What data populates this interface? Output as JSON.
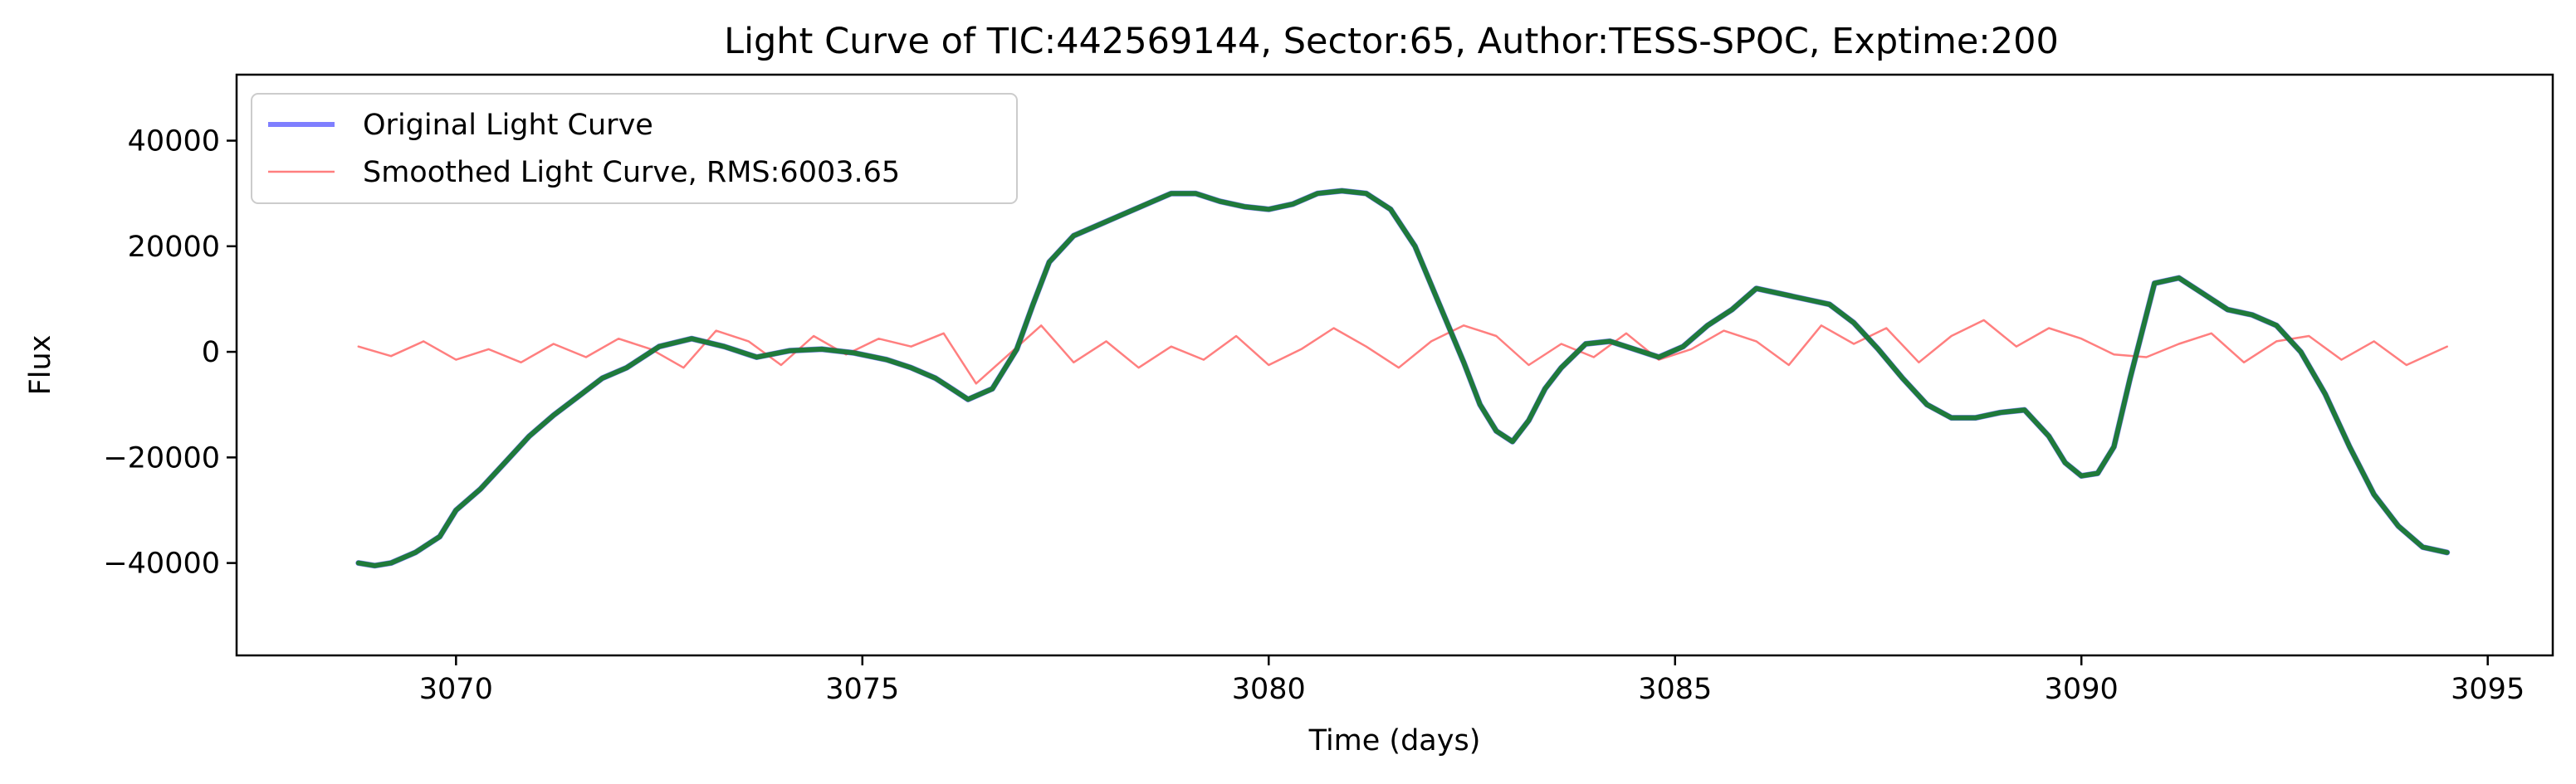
{
  "chart_data": {
    "type": "line",
    "title": "Light Curve of TIC:442569144, Sector:65, Author:TESS-SPOC, Exptime:200",
    "xlabel": "Time (days)",
    "ylabel": "Flux",
    "xlim": [
      3067.3,
      3095.8
    ],
    "ylim": [
      -57500,
      52500
    ],
    "xticks": [
      3070,
      3075,
      3080,
      3085,
      3090,
      3095
    ],
    "yticks": [
      -40000,
      -20000,
      0,
      20000,
      40000
    ],
    "grid": false,
    "legend_position": "top-left",
    "series": [
      {
        "name": "Original Light Curve",
        "color": "#0000ff",
        "x": [
          3068.8,
          3069.0,
          3069.2,
          3069.5,
          3069.8,
          3070.0,
          3070.3,
          3070.6,
          3070.9,
          3071.2,
          3071.5,
          3071.8,
          3072.1,
          3072.5,
          3072.9,
          3073.3,
          3073.7,
          3074.1,
          3074.5,
          3074.9,
          3075.3,
          3075.6,
          3075.9,
          3076.1,
          3076.3,
          3076.6,
          3076.9,
          3077.1,
          3077.3,
          3077.6,
          3077.9,
          3078.2,
          3078.5,
          3078.8,
          3079.1,
          3079.4,
          3079.7,
          3080.0,
          3080.3,
          3080.6,
          3080.9,
          3081.2,
          3081.5,
          3081.8,
          3082.1,
          3082.4,
          3082.6,
          3082.8,
          3083.0,
          3083.2,
          3083.4,
          3083.6,
          3083.9,
          3084.2,
          3084.5,
          3084.8,
          3085.1,
          3085.4,
          3085.7,
          3086.0,
          3086.3,
          3086.6,
          3086.9,
          3087.2,
          3087.5,
          3087.8,
          3088.1,
          3088.4,
          3088.7,
          3089.0,
          3089.3,
          3089.6,
          3089.8,
          3090.0,
          3090.2,
          3090.4,
          3090.6,
          3090.9,
          3091.2,
          3091.5,
          3091.8,
          3092.1,
          3092.4,
          3092.7,
          3093.0,
          3093.3,
          3093.6,
          3093.9,
          3094.2,
          3094.5
        ],
        "y": [
          -40000,
          -40500,
          -40000,
          -38000,
          -35000,
          -30000,
          -26000,
          -21000,
          -16000,
          -12000,
          -8500,
          -5000,
          -3000,
          1000,
          2500,
          1000,
          -1000,
          200,
          500,
          -200,
          -1500,
          -3000,
          -5000,
          -7000,
          -9000,
          -7000,
          500,
          9000,
          17000,
          22000,
          24000,
          26000,
          28000,
          30000,
          30000,
          28500,
          27500,
          27000,
          28000,
          30000,
          30500,
          30000,
          27000,
          20000,
          9000,
          -2000,
          -10000,
          -15000,
          -17000,
          -13000,
          -7000,
          -3000,
          1500,
          2000,
          500,
          -1000,
          1000,
          5000,
          8000,
          12000,
          11000,
          10000,
          9000,
          5500,
          500,
          -5000,
          -10000,
          -12500,
          -12500,
          -11500,
          -11000,
          -16000,
          -21000,
          -23500,
          -23000,
          -18000,
          -5000,
          13000,
          14000,
          11000,
          8000,
          7000,
          5000,
          0,
          -8000,
          -18000,
          -27000,
          -33000,
          -37000,
          -38000
        ]
      },
      {
        "name": "Smoothed Light Curve, RMS:6003.65",
        "color": "#ff0000",
        "x": [
          3068.8,
          3069.2,
          3069.6,
          3070.0,
          3070.4,
          3070.8,
          3071.2,
          3071.6,
          3072.0,
          3072.4,
          3072.8,
          3073.2,
          3073.6,
          3074.0,
          3074.4,
          3074.8,
          3075.2,
          3075.6,
          3076.0,
          3076.4,
          3076.8,
          3077.2,
          3077.6,
          3078.0,
          3078.4,
          3078.8,
          3079.2,
          3079.6,
          3080.0,
          3080.4,
          3080.8,
          3081.2,
          3081.6,
          3082.0,
          3082.4,
          3082.8,
          3083.2,
          3083.6,
          3084.0,
          3084.4,
          3084.8,
          3085.2,
          3085.6,
          3086.0,
          3086.4,
          3086.8,
          3087.2,
          3087.6,
          3088.0,
          3088.4,
          3088.8,
          3089.2,
          3089.6,
          3090.0,
          3090.4,
          3090.8,
          3091.2,
          3091.6,
          3092.0,
          3092.4,
          3092.8,
          3093.2,
          3093.6,
          3094.0,
          3094.5
        ],
        "y": [
          1000,
          -800,
          2000,
          -1500,
          500,
          -2000,
          1500,
          -1000,
          2500,
          500,
          -3000,
          4000,
          2000,
          -2500,
          3000,
          -500,
          2500,
          1000,
          3500,
          -6000,
          -500,
          5000,
          -2000,
          2000,
          -3000,
          1000,
          -1500,
          3000,
          -2500,
          500,
          4500,
          1000,
          -3000,
          2000,
          5000,
          3000,
          -2500,
          1500,
          -1000,
          3500,
          -1500,
          500,
          4000,
          2000,
          -2500,
          5000,
          1500,
          4500,
          -2000,
          3000,
          6000,
          1000,
          4500,
          2500,
          -500,
          -1000,
          1500,
          3500,
          -2000,
          2000,
          3000,
          -1500,
          2000,
          -2500,
          1000
        ]
      },
      {
        "name": "",
        "color": "#1f7a3a",
        "x": [
          3068.8,
          3069.0,
          3069.2,
          3069.5,
          3069.8,
          3070.0,
          3070.3,
          3070.6,
          3070.9,
          3071.2,
          3071.5,
          3071.8,
          3072.1,
          3072.5,
          3072.9,
          3073.3,
          3073.7,
          3074.1,
          3074.5,
          3074.9,
          3075.3,
          3075.6,
          3075.9,
          3076.1,
          3076.3,
          3076.6,
          3076.9,
          3077.1,
          3077.3,
          3077.6,
          3077.9,
          3078.2,
          3078.5,
          3078.8,
          3079.1,
          3079.4,
          3079.7,
          3080.0,
          3080.3,
          3080.6,
          3080.9,
          3081.2,
          3081.5,
          3081.8,
          3082.1,
          3082.4,
          3082.6,
          3082.8,
          3083.0,
          3083.2,
          3083.4,
          3083.6,
          3083.9,
          3084.2,
          3084.5,
          3084.8,
          3085.1,
          3085.4,
          3085.7,
          3086.0,
          3086.3,
          3086.6,
          3086.9,
          3087.2,
          3087.5,
          3087.8,
          3088.1,
          3088.4,
          3088.7,
          3089.0,
          3089.3,
          3089.6,
          3089.8,
          3090.0,
          3090.2,
          3090.4,
          3090.6,
          3090.9,
          3091.2,
          3091.5,
          3091.8,
          3092.1,
          3092.4,
          3092.7,
          3093.0,
          3093.3,
          3093.6,
          3093.9,
          3094.2,
          3094.5
        ],
        "y": [
          -40000,
          -40500,
          -40000,
          -38000,
          -35000,
          -30000,
          -26000,
          -21000,
          -16000,
          -12000,
          -8500,
          -5000,
          -3000,
          1000,
          2500,
          1000,
          -1000,
          200,
          500,
          -200,
          -1500,
          -3000,
          -5000,
          -7000,
          -9000,
          -7000,
          500,
          9000,
          17000,
          22000,
          24000,
          26000,
          28000,
          30000,
          30000,
          28500,
          27500,
          27000,
          28000,
          30000,
          30500,
          30000,
          27000,
          20000,
          9000,
          -2000,
          -10000,
          -15000,
          -17000,
          -13000,
          -7000,
          -3000,
          1500,
          2000,
          500,
          -1000,
          1000,
          5000,
          8000,
          12000,
          11000,
          10000,
          9000,
          5500,
          500,
          -5000,
          -10000,
          -12500,
          -12500,
          -11500,
          -11000,
          -16000,
          -21000,
          -23500,
          -23000,
          -18000,
          -5000,
          13000,
          14000,
          11000,
          8000,
          7000,
          5000,
          0,
          -8000,
          -18000,
          -27000,
          -33000,
          -37000,
          -38000
        ]
      }
    ]
  }
}
